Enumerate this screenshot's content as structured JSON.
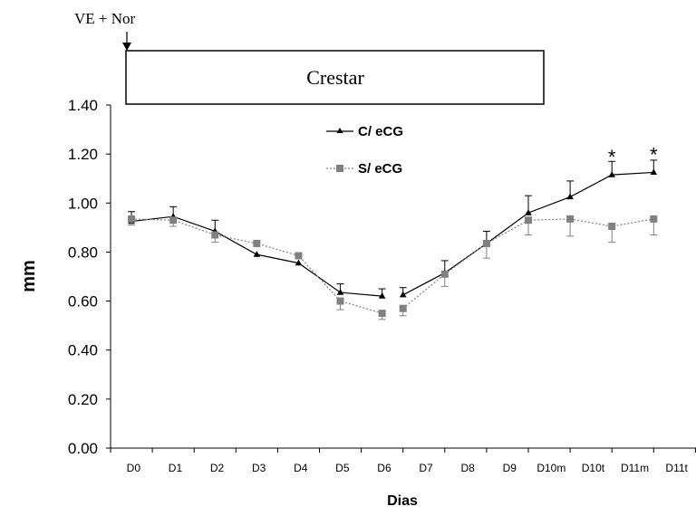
{
  "chart_data": {
    "type": "line",
    "annotation_arrow_label": "VE + Nor",
    "treatment_box_label": "Crestar",
    "xlabel": "Dias",
    "ylabel": "mm",
    "ylim": [
      0,
      1.4
    ],
    "yticks": [
      "0.00",
      "0.20",
      "0.40",
      "0.60",
      "0.80",
      "1.00",
      "1.20",
      "1.40"
    ],
    "categories": [
      "D0",
      "D1",
      "D2",
      "D3",
      "D4",
      "D5",
      "D6",
      "D7",
      "D8",
      "D9",
      "D10m",
      "D10t",
      "D11m",
      "D11t"
    ],
    "grid": false,
    "legend_position": "top-center",
    "series": [
      {
        "name": "C/ eCG",
        "color": "#000000",
        "marker": "triangle",
        "line": "solid",
        "segments": [
          {
            "x": [
              0.5,
              1.5,
              2.5,
              3.5,
              4.5,
              5.5,
              6.5
            ],
            "y": [
              0.925,
              0.945,
              0.885,
              0.79,
              0.755,
              0.635,
              0.62
            ],
            "err": [
              0.04,
              0.04,
              0.045,
              0,
              0,
              0.035,
              0.03
            ]
          },
          {
            "x": [
              7.0,
              8.0,
              9.0,
              10.0,
              11.0,
              12.0,
              13.0
            ],
            "y": [
              0.625,
              0.715,
              0.835,
              0.96,
              1.025,
              1.115,
              1.125
            ],
            "err": [
              0.03,
              0.05,
              0.05,
              0.07,
              0.065,
              0.055,
              0.05
            ]
          }
        ]
      },
      {
        "name": "S/ eCG",
        "color": "#808080",
        "marker": "square",
        "line": "dotted",
        "segments": [
          {
            "x": [
              0.5,
              1.5,
              2.5,
              3.5,
              4.5,
              5.5,
              6.5
            ],
            "y": [
              0.935,
              0.93,
              0.87,
              0.835,
              0.785,
              0.6,
              0.55
            ],
            "err": [
              0.025,
              0.025,
              0.03,
              0,
              0,
              0.035,
              0.025
            ]
          },
          {
            "x": [
              7.0,
              8.0,
              9.0,
              10.0,
              11.0,
              12.0,
              13.0
            ],
            "y": [
              0.57,
              0.71,
              0.835,
              0.93,
              0.935,
              0.905,
              0.935
            ],
            "err": [
              0.03,
              0.05,
              0.06,
              0.06,
              0.07,
              0.065,
              0.065
            ]
          }
        ]
      }
    ],
    "significance": [
      {
        "x": 12.0,
        "y": 1.16,
        "label": "*"
      },
      {
        "x": 13.0,
        "y": 1.17,
        "label": "*"
      }
    ]
  }
}
